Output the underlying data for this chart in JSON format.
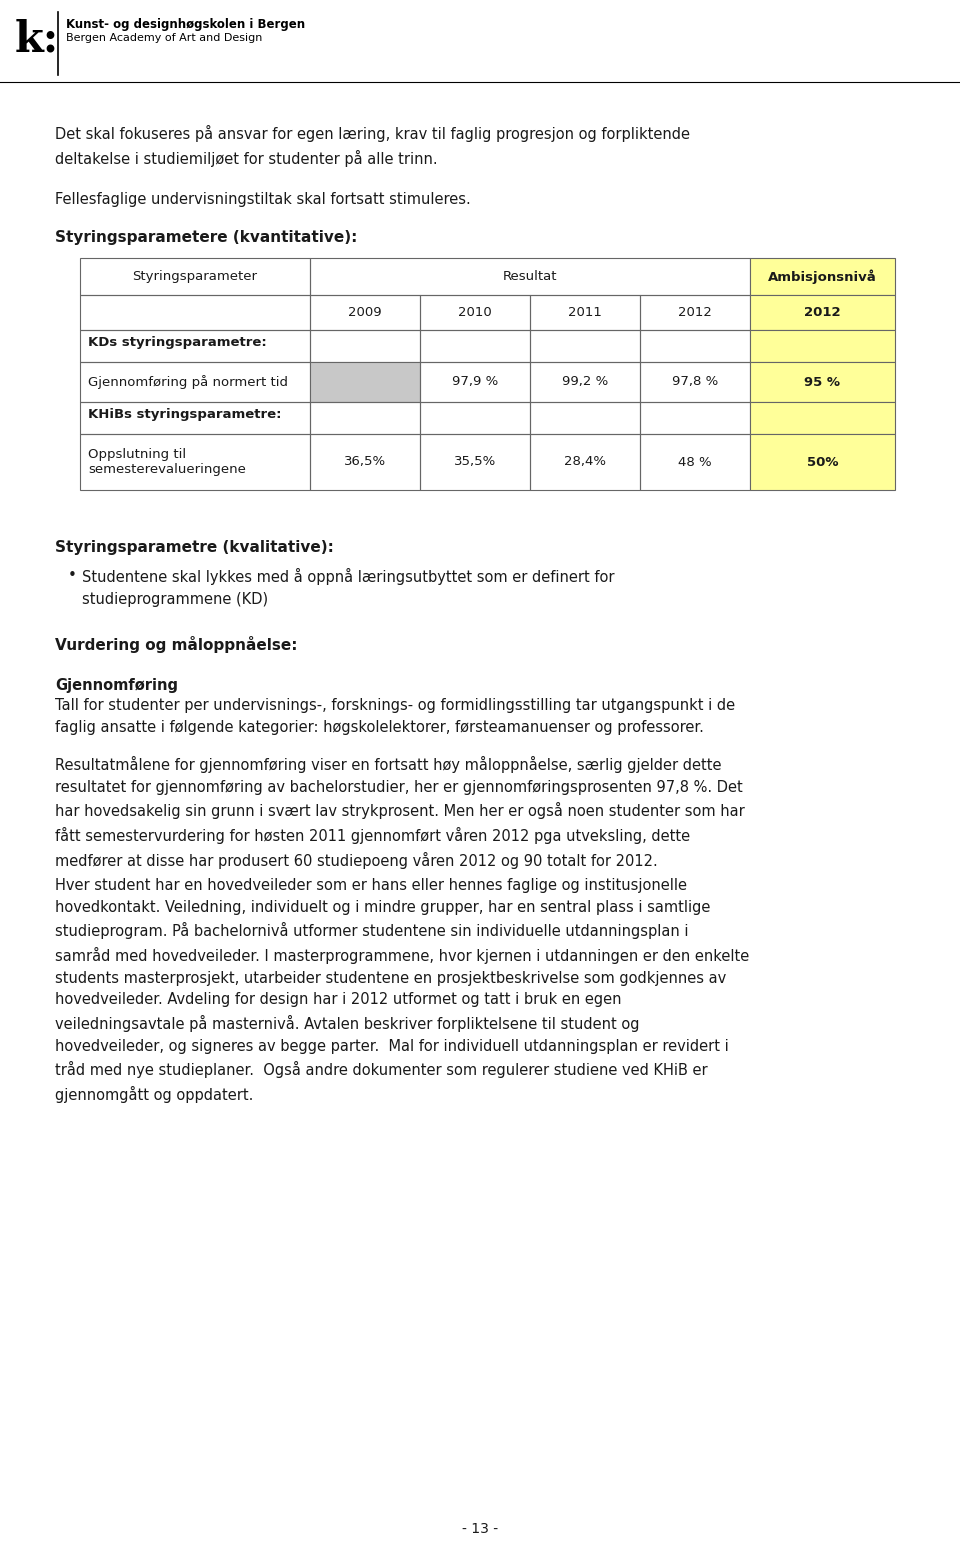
{
  "page_bg": "#ffffff",
  "logo_text_line1": "Kunst- og designhøgskolen i Bergen",
  "logo_text_line2": "Bergen Academy of Art and Design",
  "intro_text1": "Det skal fokuseres på ansvar for egen læring, krav til faglig progresjon og forpliktende\ndeltakelse i studiemiljøet for studenter på alle trinn.",
  "intro_text2": "Fellesfaglige undervisningstiltak skal fortsatt stimuleres.",
  "section_title1": "Styringsparametere (kvantitative):",
  "table_header_col1": "Styringsparameter",
  "table_header_resultat": "Resultat",
  "table_header_ambisjon": "Ambisjonsnivå",
  "table_years": [
    "2009",
    "2010",
    "2011",
    "2012"
  ],
  "table_ambisjon_year": "2012",
  "table_row_kds": "KDs styringsparametre:",
  "table_row1_label": "Gjennomføring på normert tid",
  "table_row1_values": [
    "",
    "97,9 %",
    "99,2 %",
    "97,8 %"
  ],
  "table_row1_ambisjon": "95 %",
  "table_row_khibs": "KHiBs styringsparametre:",
  "table_row2_label": "Oppslutning til\nsemesterevalueringene",
  "table_row2_values": [
    "36,5%",
    "35,5%",
    "28,4%",
    "48 %"
  ],
  "table_row2_ambisjon": "50%",
  "ambisjon_bg": "#ffff99",
  "grey_cell_bg": "#c8c8c8",
  "section_title2": "Styringsparametre (kvalitative):",
  "bullet_text": "Studentene skal lykkes med å oppnå læringsutbyttet som er definert for\nstudieprogrammene (KD)",
  "section_title3": "Vurdering og måloppnåelse:",
  "section_title4": "Gjennomføring",
  "para1": "Tall for studenter per undervisnings-, forsknings- og formidlingsstilling tar utgangspunkt i de\nfaglig ansatte i følgende kategorier: høgskolelektorer, førsteamanuenser og professorer.",
  "para2": "Resultatmålene for gjennomføring viser en fortsatt høy måloppnåelse, særlig gjelder dette\nresultatet for gjennomføring av bachelorstudier, her er gjennomføringsprosenten 97,8 %. Det\nhar hovedsakelig sin grunn i svært lav strykprosent. Men her er også noen studenter som har\nfått semestervurdering for høsten 2011 gjennomført våren 2012 pga utveksling, dette\nmedfører at disse har produsert 60 studiepoeng våren 2012 og 90 totalt for 2012.",
  "para3": "Hver student har en hovedveileder som er hans eller hennes faglige og institusjonelle\nhovedkontakt. Veiledning, individuelt og i mindre grupper, har en sentral plass i samtlige\nstudieprogram. På bachelornivå utformer studentene sin individuelle utdanningsplan i\nsamråd med hovedveileder. I masterprogrammene, hvor kjernen i utdanningen er den enkelte\nstudents masterprosjekt, utarbeider studentene en prosjektbeskrivelse som godkjennes av\nhovedveileder. Avdeling for design har i 2012 utformet og tatt i bruk en egen\nveiledningsavtale på masternivå. Avtalen beskriver forpliktelsene til student og\nhovedveileder, og signeres av begge parter.  Mal for individuell utdanningsplan er revidert i\ntråd med nye studieplaner.  Også andre dokumenter som regulerer studiene ved KHiB er\ngjennomgått og oppdatert.",
  "page_number": "- 13 -",
  "text_color": "#1a1a1a",
  "table_border_color": "#666666"
}
